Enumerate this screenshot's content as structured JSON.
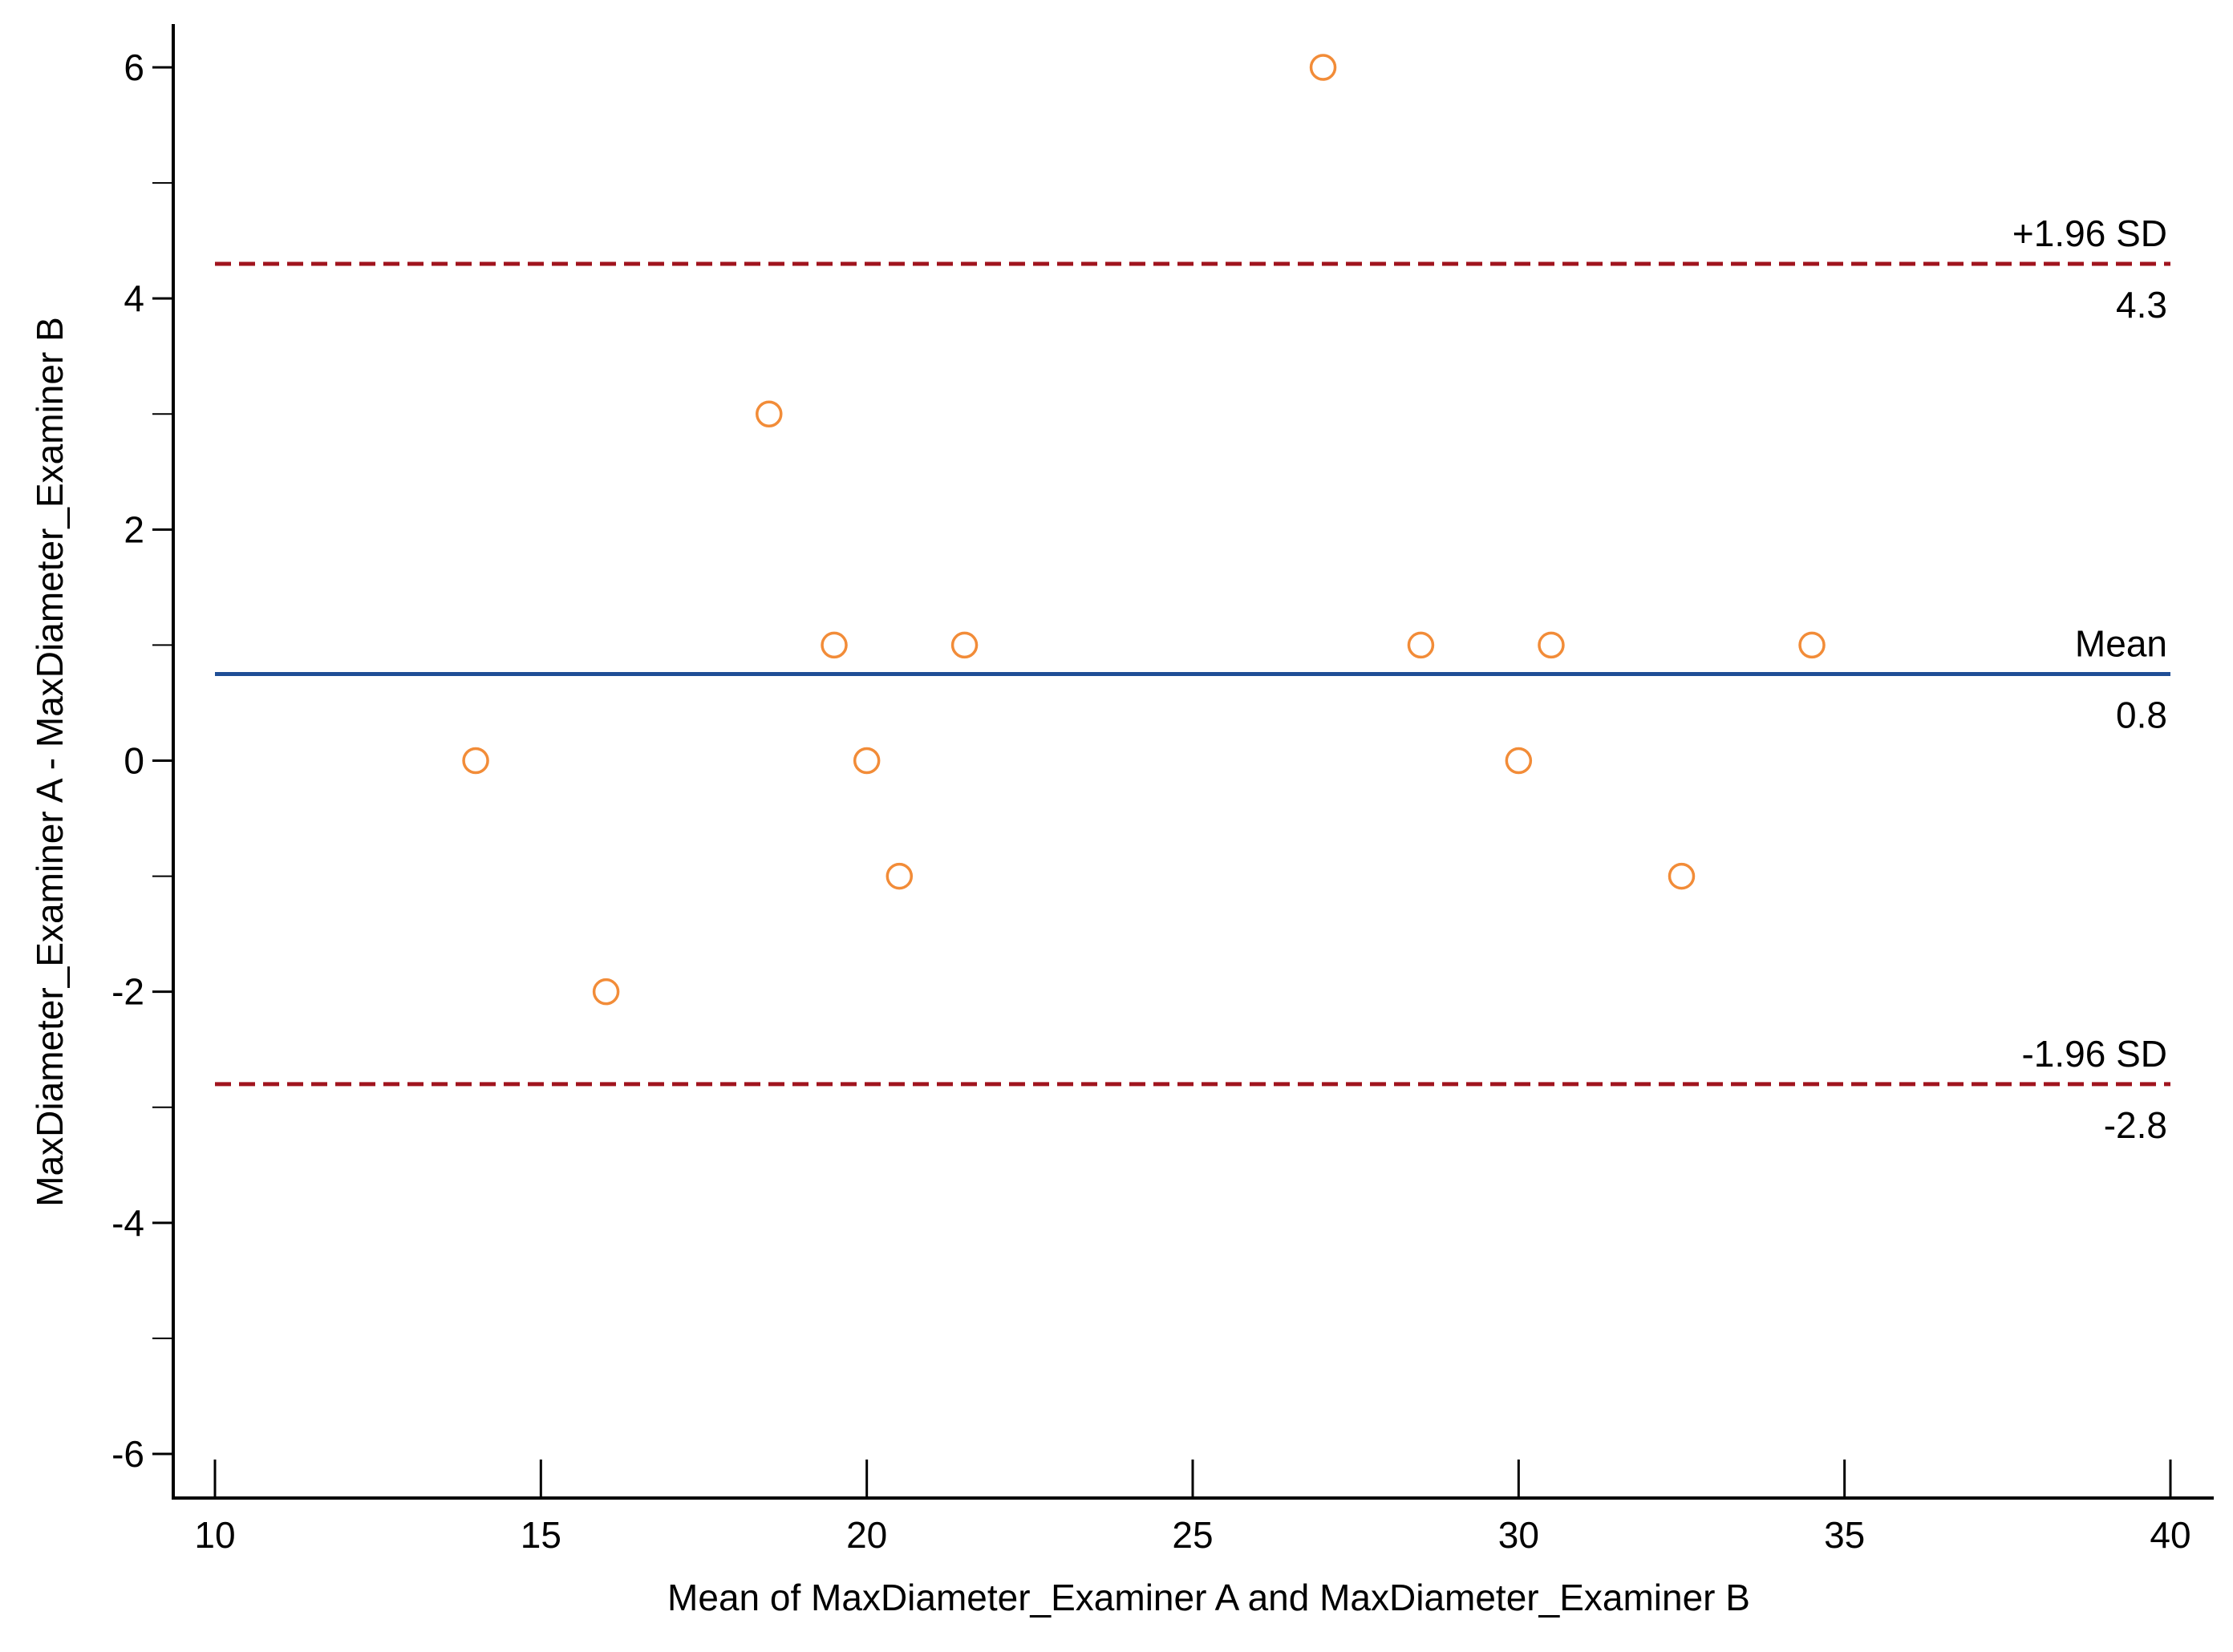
{
  "chart_data": {
    "type": "scatter",
    "title": "",
    "xlabel": "Mean of MaxDiameter_Examiner A and MaxDiameter_Examiner B",
    "ylabel": "MaxDiameter_Examiner A - MaxDiameter_Examiner B",
    "xlim": [
      10,
      40
    ],
    "ylim": [
      -6,
      6
    ],
    "x_ticks": [
      10,
      15,
      20,
      25,
      30,
      35,
      40
    ],
    "x_tick_labels": [
      "10",
      "15",
      "20",
      "25",
      "30",
      "35",
      "40"
    ],
    "y_ticks": [
      -6,
      -4,
      -2,
      0,
      2,
      4,
      6
    ],
    "y_tick_labels": [
      "-6",
      "-4",
      "-2",
      "0",
      "2",
      "4",
      "6"
    ],
    "y_minor_ticks": [
      -5,
      -3,
      -1,
      1,
      3,
      5
    ],
    "grid": false,
    "series": [
      {
        "marker": "open-circle",
        "color": "#f28c38",
        "points": [
          {
            "x": 14,
            "y": 0
          },
          {
            "x": 16,
            "y": -2
          },
          {
            "x": 18.5,
            "y": 3
          },
          {
            "x": 19.5,
            "y": 1
          },
          {
            "x": 20,
            "y": 0
          },
          {
            "x": 20.5,
            "y": -1
          },
          {
            "x": 21.5,
            "y": 1
          },
          {
            "x": 27,
            "y": 6
          },
          {
            "x": 28.5,
            "y": 1
          },
          {
            "x": 30,
            "y": 0
          },
          {
            "x": 30.5,
            "y": 1
          },
          {
            "x": 32.5,
            "y": -1
          },
          {
            "x": 34.5,
            "y": 1
          }
        ]
      }
    ],
    "reference_lines": [
      {
        "id": "upper-loa",
        "label": "+1.96 SD",
        "value_label": "4.3",
        "value": 4.3,
        "color": "#a0141e",
        "style": "dashed"
      },
      {
        "id": "mean",
        "label": "Mean",
        "value_label": "0.8",
        "value": 0.75,
        "color": "#1f4e96",
        "style": "solid"
      },
      {
        "id": "lower-loa",
        "label": "-1.96 SD",
        "value_label": "-2.8",
        "value": -2.8,
        "color": "#a0141e",
        "style": "dashed"
      }
    ]
  }
}
